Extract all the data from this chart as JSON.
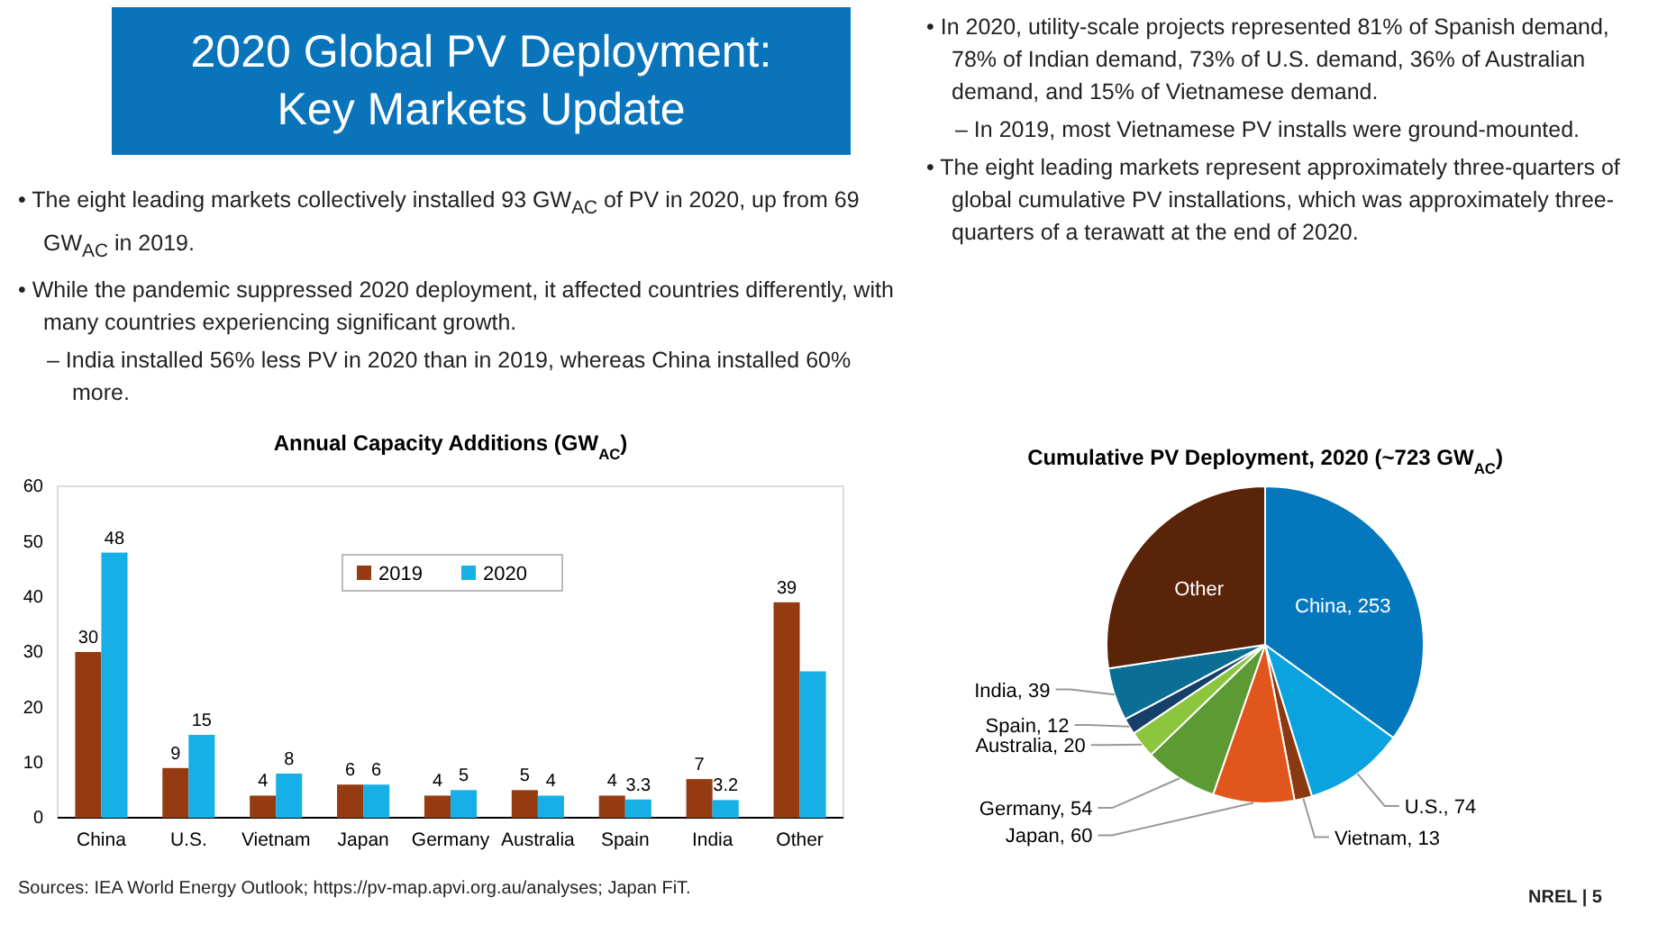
{
  "chart_data": [
    {
      "type": "other",
      "title": "2020 Global PV Deployment: Key Markets Update",
      "annotations": [
        "• The eight leading markets collectively installed 93 GW$_{AC}$ of PV in 2020, up from 69 GW$_{AC}$ in 2019.",
        "• While the pandemic suppressed 2020 deployment, it affected countries differently, with many countries experiencing significant growth.",
        "– India installed 56% less PV in 2020 than in 2019, whereas China installed 60% more.",
        "• In 2020, utility-scale projects represented 81% of Spanish demand, 78% of Indian demand, 73% of U.S. demand, 36% of Australian demand, and 15% of Vietnamese demand.",
        "– In 2019, most Vietnamese PV installs were ground-mounted.",
        "• The eight leading markets represent approximately three-quarters of global cumulative PV installations, which was approximately three-quarters of a terawatt at the end of 2020.",
        "Sources: IEA World Energy Outlook; https://pv-map.apvi.org.au/analyses; Japan FiT.",
        "NREL | 5"
      ]
    },
    {
      "type": "bar",
      "title": "Annual Capacity Additions (GW$_{AC}$)",
      "categories": [
        "China",
        "U.S.",
        "Vietnam",
        "Japan",
        "Germany",
        "Australia",
        "Spain",
        "India",
        "Other"
      ],
      "series": [
        {
          "name": "2019",
          "color": "#953b12",
          "values": [
            30,
            9,
            4,
            6,
            4,
            5,
            4,
            7,
            39
          ],
          "value_labels": [
            "30",
            "9",
            "4",
            "6",
            "4",
            "5",
            "4",
            "7",
            "39"
          ]
        },
        {
          "name": "2020",
          "color": "#17b0e6",
          "values": [
            48,
            15,
            8,
            6,
            5,
            4,
            3.3,
            3.2,
            26.5
          ],
          "value_labels": [
            "48",
            "15",
            "8",
            "6",
            "5",
            "4",
            "3.3",
            "3.2",
            null
          ]
        }
      ],
      "ylim": [
        0,
        60
      ],
      "yticks": [
        0,
        10,
        20,
        30,
        40,
        50,
        60
      ],
      "grid": false,
      "legend": "top"
    },
    {
      "type": "pie",
      "title": "Cumulative PV Deployment, 2020 (~723 GW$_{AC}$)",
      "categories": [
        "China",
        "U.S.",
        "Vietnam",
        "Japan",
        "Germany",
        "Australia",
        "Spain",
        "India",
        "Other"
      ],
      "values": [
        253,
        74,
        13,
        60,
        54,
        20,
        12,
        39,
        198
      ],
      "value_labels": [
        "253",
        "74",
        "13",
        "60",
        "54",
        "20",
        "12",
        "39",
        null
      ],
      "colors": [
        "#0578bd",
        "#0aa3df",
        "#8a3a12",
        "#e0561c",
        "#5c9a33",
        "#8cc63e",
        "#16406a",
        "#0b6e94",
        "#5a2408"
      ]
    }
  ]
}
